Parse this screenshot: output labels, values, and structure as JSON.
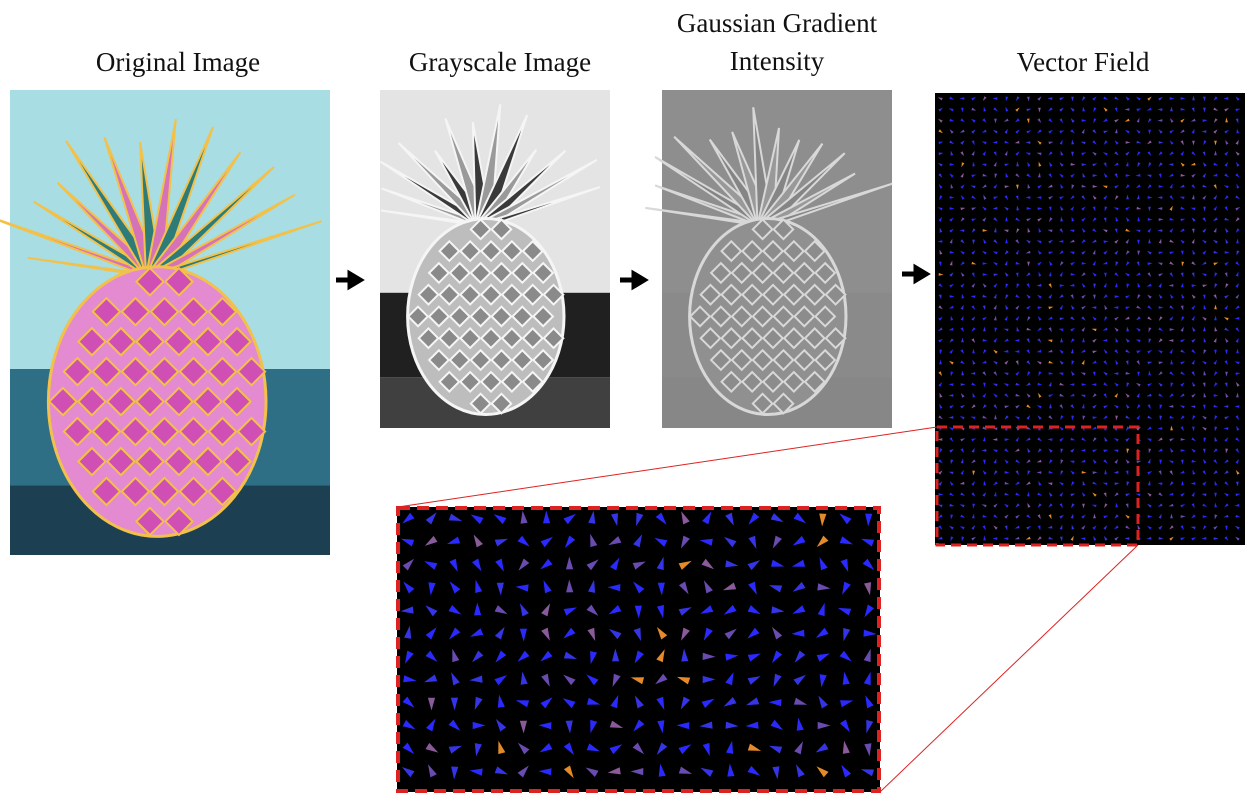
{
  "panels": [
    {
      "title": "Original Image"
    },
    {
      "title": "Grayscale Image"
    },
    {
      "title": "Gaussian Gradient Intensity"
    },
    {
      "title": "Vector Field"
    }
  ]
}
